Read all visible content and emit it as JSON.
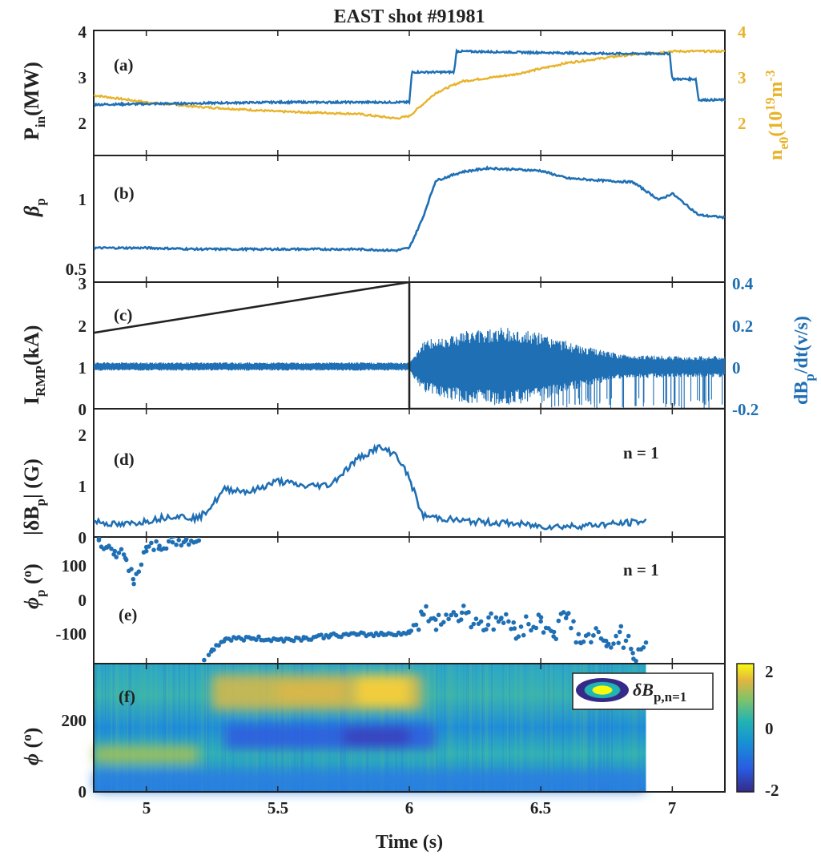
{
  "title": "EAST shot #91981",
  "x_axis": {
    "label": "Time (s)",
    "range": [
      4.8,
      7.2
    ],
    "ticks": [
      "5",
      "5.5",
      "6",
      "6.5",
      "7"
    ]
  },
  "colors": {
    "blue": "#1f6fb4",
    "orange": "#e8b32a",
    "black": "#222222"
  },
  "panels": {
    "a": {
      "label": "(a)",
      "y_main": "P",
      "y_main_sub": "in",
      "y_main_unit": "(MW)",
      "y_right_main": "n",
      "y_right_sub": "e0",
      "y_right_unit": "(10",
      "y_right_sup": "19",
      "y_right_unit2": "m",
      "y_right_sup2": "-3",
      "left_ticks": [
        "2",
        "3",
        "4"
      ],
      "right_ticks": [
        "2",
        "3",
        "4"
      ]
    },
    "b": {
      "label": "(b)",
      "y_main": "β",
      "y_sub": "p",
      "ticks": [
        "0.5",
        "1"
      ]
    },
    "c": {
      "label": "(c)",
      "y_main": "I",
      "y_sub": "RMP",
      "y_unit": "(kA)",
      "left_ticks": [
        "0",
        "1",
        "2",
        "3"
      ],
      "right_main": "dB",
      "right_sub": "p",
      "right_unit": "/dt(v/s)",
      "right_ticks": [
        "-0.2",
        "0",
        "0.2",
        "0.4"
      ]
    },
    "d": {
      "label": "(d)",
      "y_main": "|δB",
      "y_sub": "p",
      "y_unit": "| (G)",
      "note": "n = 1",
      "ticks": [
        "0",
        "1",
        "2"
      ]
    },
    "e": {
      "label": "(e)",
      "y_main": "ϕ",
      "y_sub": "p",
      "y_unit": " (",
      "y_sup": "o",
      "y_unit2": ")",
      "note": "n = 1",
      "ticks": [
        "-100",
        "0",
        "100"
      ]
    },
    "f": {
      "label": "(f)",
      "y_main": "ϕ",
      "y_unit": " (",
      "y_sup": "o",
      "y_unit2": ")",
      "ticks": [
        "0",
        "200"
      ],
      "legend": "δB",
      "legend_sub": "p,n=1",
      "colorbar_ticks": [
        "2",
        "0",
        "-2"
      ]
    }
  },
  "chart_data": [
    {
      "type": "line",
      "panel": "a",
      "xlim": [
        4.8,
        7.2
      ],
      "ylim": [
        1.3,
        4.0
      ],
      "y2lim": [
        1.3,
        4.0
      ],
      "series": [
        {
          "axis": "left",
          "color": "#1f6fb4",
          "x": [
            4.8,
            5.5,
            6.0,
            6.01,
            6.17,
            6.18,
            6.75,
            6.99,
            7.0,
            7.09,
            7.1,
            7.2
          ],
          "y": [
            2.4,
            2.45,
            2.45,
            3.1,
            3.1,
            3.55,
            3.5,
            3.5,
            2.95,
            2.95,
            2.5,
            2.5
          ]
        },
        {
          "axis": "right",
          "color": "#e8b32a",
          "x": [
            4.8,
            5.0,
            5.2,
            5.5,
            5.8,
            5.95,
            6.0,
            6.05,
            6.1,
            6.2,
            6.4,
            6.6,
            6.8,
            7.0,
            7.2
          ],
          "y": [
            2.6,
            2.45,
            2.35,
            2.25,
            2.2,
            2.1,
            2.15,
            2.4,
            2.65,
            2.9,
            3.05,
            3.3,
            3.45,
            3.55,
            3.55
          ]
        }
      ]
    },
    {
      "type": "line",
      "panel": "b",
      "xlim": [
        4.8,
        7.2
      ],
      "ylim": [
        0.45,
        1.45
      ],
      "series": [
        {
          "color": "#1f6fb4",
          "x": [
            4.8,
            5.0,
            5.2,
            5.4,
            5.6,
            5.8,
            5.95,
            6.0,
            6.05,
            6.1,
            6.2,
            6.3,
            6.5,
            6.6,
            6.75,
            6.85,
            6.95,
            7.0,
            7.1,
            7.2
          ],
          "y": [
            0.72,
            0.72,
            0.71,
            0.71,
            0.71,
            0.71,
            0.7,
            0.72,
            0.95,
            1.25,
            1.32,
            1.35,
            1.33,
            1.27,
            1.25,
            1.24,
            1.1,
            1.15,
            0.98,
            0.96
          ]
        }
      ]
    },
    {
      "type": "line",
      "panel": "c",
      "xlim": [
        4.8,
        7.2
      ],
      "ylim": [
        0,
        3
      ],
      "y2lim": [
        -0.2,
        0.4
      ],
      "series": [
        {
          "axis": "left",
          "color": "#222222",
          "x": [
            4.8,
            6.0,
            6.0,
            7.2
          ],
          "y": [
            1.8,
            3.0,
            0.0,
            0.0
          ]
        },
        {
          "axis": "right",
          "color": "#1f6fb4",
          "kind": "oscillation",
          "x": [
            4.8,
            6.0,
            6.05,
            6.2,
            6.35,
            6.5,
            6.65,
            6.8,
            7.0,
            7.2
          ],
          "amplitude": [
            0.02,
            0.02,
            0.12,
            0.17,
            0.19,
            0.16,
            0.1,
            0.06,
            0.05,
            0.05
          ]
        }
      ]
    },
    {
      "type": "line",
      "panel": "d",
      "xlim": [
        4.8,
        7.2
      ],
      "ylim": [
        0,
        2.4
      ],
      "series": [
        {
          "color": "#1f6fb4",
          "x": [
            4.8,
            4.9,
            5.0,
            5.1,
            5.2,
            5.25,
            5.3,
            5.4,
            5.5,
            5.6,
            5.7,
            5.8,
            5.88,
            5.95,
            6.0,
            6.05,
            6.2,
            6.4,
            6.5,
            6.6,
            6.8,
            6.9
          ],
          "y": [
            0.3,
            0.22,
            0.3,
            0.4,
            0.35,
            0.6,
            0.9,
            0.85,
            1.05,
            0.95,
            0.98,
            1.45,
            1.68,
            1.55,
            1.1,
            0.4,
            0.3,
            0.25,
            0.2,
            0.2,
            0.25,
            0.3
          ]
        }
      ]
    },
    {
      "type": "scatter",
      "panel": "e",
      "xlim": [
        4.8,
        7.2
      ],
      "ylim": [
        -180,
        180
      ],
      "series": [
        {
          "color": "#1f6fb4",
          "name": "",
          "x": [
            4.82,
            4.85,
            4.88,
            4.92,
            4.95,
            5.0,
            5.05,
            5.1,
            5.15,
            5.2,
            5.22,
            5.25,
            5.3,
            5.4,
            5.5,
            5.6,
            5.7,
            5.8,
            5.9,
            6.0,
            6.05,
            6.1,
            6.2,
            6.3,
            6.35,
            6.4,
            6.5,
            6.55,
            6.6,
            6.65,
            6.7,
            6.75,
            6.8,
            6.85,
            6.9
          ],
          "y": [
            175,
            150,
            140,
            120,
            60,
            140,
            155,
            165,
            170,
            170,
            -170,
            -140,
            -110,
            -108,
            -112,
            -108,
            -100,
            -98,
            -96,
            -92,
            -40,
            -55,
            -35,
            -70,
            -50,
            -80,
            -60,
            -90,
            -40,
            -120,
            -100,
            -130,
            -90,
            -150,
            -120
          ]
        }
      ]
    },
    {
      "type": "heatmap",
      "panel": "f",
      "xlim": [
        4.8,
        7.2
      ],
      "ylim": [
        0,
        360
      ],
      "data_xlim": [
        4.8,
        6.9
      ],
      "clim": [
        -2,
        2
      ],
      "colormap": "parula",
      "features": [
        {
          "x": [
            5.25,
            6.05
          ],
          "y": [
            230,
            330
          ],
          "value": 1.3
        },
        {
          "x": [
            5.5,
            5.75
          ],
          "y": [
            250,
            310
          ],
          "value": 1.5
        },
        {
          "x": [
            5.8,
            6.0
          ],
          "y": [
            240,
            330
          ],
          "value": 2.0
        },
        {
          "x": [
            5.3,
            6.1
          ],
          "y": [
            120,
            190
          ],
          "value": -1.2
        },
        {
          "x": [
            5.75,
            6.0
          ],
          "y": [
            130,
            180
          ],
          "value": -1.8
        },
        {
          "x": [
            4.8,
            5.2
          ],
          "y": [
            80,
            130
          ],
          "value": 1.0
        },
        {
          "x": [
            4.8,
            6.9
          ],
          "y": [
            0,
            60
          ],
          "value": -0.6
        }
      ]
    }
  ]
}
